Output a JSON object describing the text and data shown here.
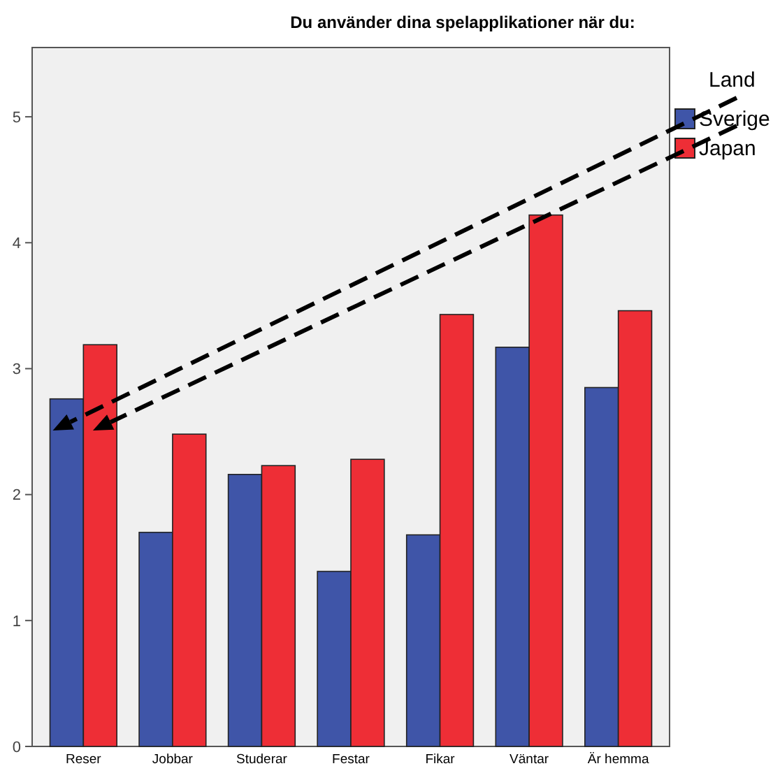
{
  "chart_data": {
    "type": "bar",
    "title": "Du använder dina spelapplikationer när du:",
    "legend_title": "Land",
    "categories": [
      "Reser",
      "Jobbar",
      "Studerar",
      "Festar",
      "Fikar",
      "Väntar",
      "Är hemma"
    ],
    "series": [
      {
        "name": "Sverige",
        "color": "#3f55a8",
        "values": [
          2.76,
          1.7,
          2.16,
          1.39,
          1.68,
          3.17,
          2.85
        ]
      },
      {
        "name": "Japan",
        "color": "#ee2e36",
        "values": [
          3.19,
          2.48,
          2.23,
          2.28,
          3.43,
          4.22,
          3.46
        ]
      }
    ],
    "ylim": [
      0,
      5.55
    ],
    "yticks": [
      0,
      1,
      2,
      3,
      4,
      5
    ],
    "grid": false,
    "legend": "top right"
  }
}
